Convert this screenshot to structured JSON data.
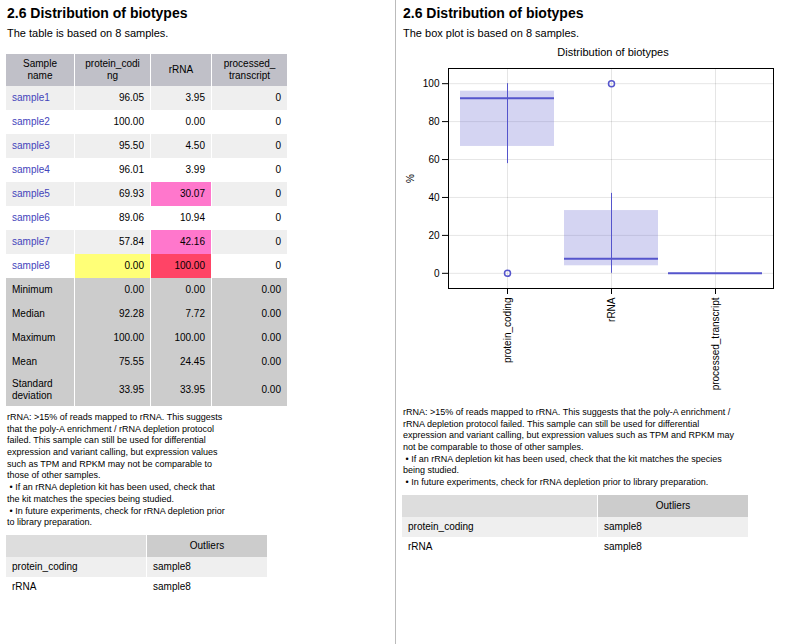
{
  "chart_data": [
    {
      "type": "table",
      "title": "2.6 Distribution of biotypes",
      "subtitle": "The table is based on 8 samples.",
      "columns": [
        "Sample\nname",
        "protein_codi\nng",
        "rRNA",
        "processed_\ntranscript"
      ],
      "rows": [
        [
          "sample1",
          "96.05",
          "3.95",
          "0"
        ],
        [
          "sample2",
          "100.00",
          "0.00",
          "0"
        ],
        [
          "sample3",
          "95.50",
          "4.50",
          "0"
        ],
        [
          "sample4",
          "96.01",
          "3.99",
          "0"
        ],
        [
          "sample5",
          "69.93",
          "30.07",
          "0"
        ],
        [
          "sample6",
          "89.06",
          "10.94",
          "0"
        ],
        [
          "sample7",
          "57.84",
          "42.16",
          "0"
        ],
        [
          "sample8",
          "0.00",
          "100.00",
          "0"
        ]
      ],
      "cell_colors": [
        [
          null,
          null,
          null,
          null
        ],
        [
          null,
          null,
          null,
          null
        ],
        [
          null,
          null,
          null,
          null
        ],
        [
          null,
          null,
          null,
          null
        ],
        [
          null,
          null,
          "#FF77CC",
          null
        ],
        [
          null,
          null,
          null,
          null
        ],
        [
          null,
          null,
          "#FF77CC",
          null
        ],
        [
          null,
          "#FFFF77",
          "#FF4466",
          null
        ]
      ],
      "stat_rows": [
        [
          "Minimum",
          "0.00",
          "0.00",
          "0.00"
        ],
        [
          "Median",
          "92.28",
          "7.72",
          "0.00"
        ],
        [
          "Maximum",
          "100.00",
          "100.00",
          "0.00"
        ],
        [
          "Mean",
          "75.55",
          "24.45",
          "0.00"
        ],
        [
          "Standard\ndeviation",
          "33.95",
          "33.95",
          "0.00"
        ]
      ],
      "annotation": "rRNA: >15% of reads mapped to rRNA. This suggests\nthat the poly-A enrichment / rRNA depletion protocol\nfailed. This sample can still be used for differential\nexpression and variant calling, but expression values\nsuch as TPM and RPKM may not be comparable to\nthose of other samples.\n • If an rRNA depletion kit has been used, check that\nthe kit matches the species being studied.\n • In future experiments, check for rRNA depletion prior\nto library preparation.",
      "outlier_header": "Outliers",
      "outlier_rows": [
        [
          "protein_coding",
          "sample8"
        ],
        [
          "rRNA",
          "sample8"
        ]
      ]
    },
    {
      "type": "box",
      "heading": "2.6 Distribution of biotypes",
      "subtitle": "The box plot is based on 8 samples.",
      "title": "Distribution of biotypes",
      "categories": [
        "protein_coding",
        "rRNA",
        "processed_transcript"
      ],
      "values": [
        [
          96.05,
          100.0,
          95.5,
          96.01,
          69.93,
          89.06,
          57.84,
          0.0
        ],
        [
          3.95,
          0.0,
          4.5,
          3.99,
          30.07,
          10.94,
          42.16,
          100.0
        ],
        [
          0,
          0,
          0,
          0,
          0,
          0,
          0,
          0
        ]
      ],
      "color": "#5555CC",
      "ylabel": "%",
      "ylim": [
        -8,
        108
      ],
      "yticks": [
        0,
        20,
        40,
        60,
        80,
        100
      ],
      "grid": true,
      "annotation": "rRNA: >15% of reads mapped to rRNA. This suggests that the poly-A enrichment /\nrRNA depletion protocol failed. This sample can still be used for differential\nexpression and variant calling, but expression values such as TPM and RPKM may\nnot be comparable to those of other samples.\n • If an rRNA depletion kit has been used, check that the kit matches the species\nbeing studied.\n • In future experiments, check for rRNA depletion prior to library preparation.",
      "outlier_header": "Outliers",
      "outlier_rows": [
        [
          "protein_coding",
          "sample8"
        ],
        [
          "rRNA",
          "sample8"
        ]
      ]
    }
  ]
}
